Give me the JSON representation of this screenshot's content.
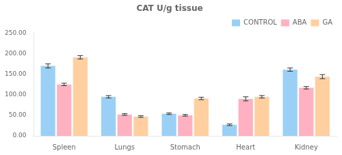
{
  "chart_data": {
    "type": "bar",
    "title": "CAT U/g tissue",
    "categories": [
      "Spleen",
      "Lungs",
      "Stomach",
      "Heart",
      "Kidney"
    ],
    "series": [
      {
        "name": "CONTROL",
        "values": [
          170,
          95,
          54,
          27,
          161
        ],
        "errors": [
          5,
          3,
          2,
          2,
          4
        ]
      },
      {
        "name": "ABA",
        "values": [
          125,
          52,
          50,
          90,
          117
        ],
        "errors": [
          3,
          2,
          2,
          5,
          3
        ]
      },
      {
        "name": "GA",
        "values": [
          191,
          47,
          91,
          95,
          144
        ],
        "errors": [
          4,
          2,
          3,
          3,
          5
        ]
      }
    ],
    "ylim": [
      0,
      250
    ],
    "yticks": [
      {
        "value": 0,
        "label": "0.00"
      },
      {
        "value": 50,
        "label": "50.00"
      },
      {
        "value": 100,
        "label": "100.00"
      },
      {
        "value": 150,
        "label": "150.00"
      },
      {
        "value": 200,
        "label": "200.00"
      },
      {
        "value": 250,
        "label": "250.00"
      }
    ],
    "grid": false,
    "legend": "upper right"
  }
}
